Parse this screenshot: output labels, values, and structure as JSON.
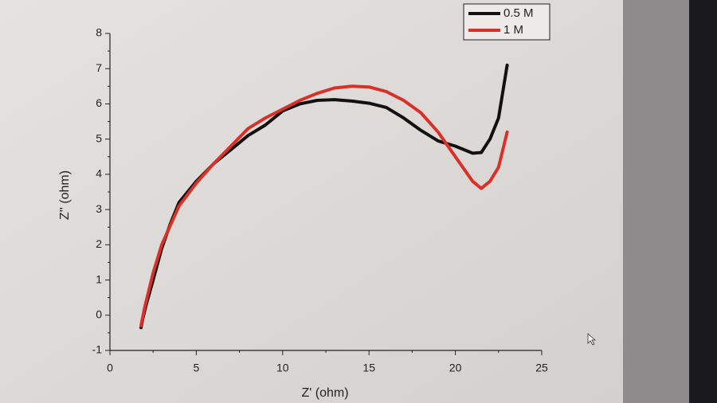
{
  "chart_data": {
    "type": "line",
    "x_label": "Z' (ohm)",
    "y_label": "Z'' (ohm)",
    "xlim": [
      0,
      25
    ],
    "ylim": [
      -1,
      8
    ],
    "xticks": [
      0,
      5,
      10,
      15,
      20,
      25
    ],
    "yticks": [
      -1,
      0,
      1,
      2,
      3,
      4,
      5,
      6,
      7,
      8
    ],
    "legend": "upper right",
    "series": [
      {
        "name": "0.5 M",
        "color": "#111111",
        "x": [
          1.8,
          1.9,
          2.1,
          2.5,
          3,
          3.5,
          4,
          5,
          6,
          7,
          8,
          9,
          10,
          11,
          12,
          13,
          14,
          15,
          16,
          17,
          18,
          19,
          20,
          21,
          21.5,
          22,
          22.5,
          23
        ],
        "values": [
          -0.35,
          -0.1,
          0.3,
          1.0,
          1.9,
          2.6,
          3.2,
          3.8,
          4.3,
          4.7,
          5.1,
          5.4,
          5.8,
          6.0,
          6.1,
          6.12,
          6.08,
          6.02,
          5.9,
          5.6,
          5.25,
          4.95,
          4.8,
          4.6,
          4.62,
          5.0,
          5.6,
          7.1
        ]
      },
      {
        "name": "1 M",
        "color": "#d7312a",
        "x": [
          1.8,
          2,
          2.5,
          3,
          4,
          5,
          6,
          7,
          8,
          9,
          10,
          11,
          12,
          13,
          14,
          15,
          16,
          17,
          18,
          19,
          20,
          21,
          21.5,
          22,
          22.5,
          23
        ],
        "values": [
          -0.3,
          0.2,
          1.2,
          2.0,
          3.1,
          3.75,
          4.3,
          4.8,
          5.3,
          5.6,
          5.85,
          6.1,
          6.3,
          6.45,
          6.5,
          6.48,
          6.35,
          6.1,
          5.75,
          5.2,
          4.5,
          3.8,
          3.6,
          3.8,
          4.2,
          5.2
        ]
      }
    ]
  }
}
